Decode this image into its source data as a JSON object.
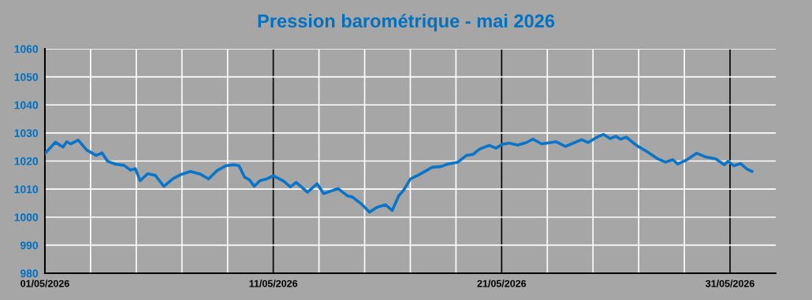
{
  "chart_data": {
    "type": "line",
    "title": "Pression barométrique - mai 2026",
    "x": [
      "2026-05-01T00:00",
      "2026-05-01T11:00",
      "2026-05-01T19:00",
      "2026-05-01T23:00",
      "2026-05-02T03:00",
      "2026-05-02T11:00",
      "2026-05-02T20:00",
      "2026-05-03T06:00",
      "2026-05-03T12:00",
      "2026-05-03T18:00",
      "2026-05-04T02:00",
      "2026-05-04T11:00",
      "2026-05-04T18:00",
      "2026-05-04T23:00",
      "2026-05-05T04:00",
      "2026-05-05T12:00",
      "2026-05-05T20:00",
      "2026-05-06T05:00",
      "2026-05-06T15:00",
      "2026-05-06T23:00",
      "2026-05-07T09:00",
      "2026-05-07T19:00",
      "2026-05-08T04:00",
      "2026-05-08T13:00",
      "2026-05-08T22:00",
      "2026-05-09T07:00",
      "2026-05-09T12:00",
      "2026-05-09T18:00",
      "2026-05-09T23:00",
      "2026-05-10T04:00",
      "2026-05-10T10:00",
      "2026-05-10T17:00",
      "2026-05-11T00:00",
      "2026-05-11T11:00",
      "2026-05-11T18:00",
      "2026-05-12T00:00",
      "2026-05-12T12:00",
      "2026-05-12T22:00",
      "2026-05-13T05:00",
      "2026-05-13T20:00",
      "2026-05-14T06:00",
      "2026-05-14T11:00",
      "2026-05-14T21:00",
      "2026-05-15T05:00",
      "2026-05-15T13:00",
      "2026-05-15T22:00",
      "2026-05-16T05:00",
      "2026-05-16T12:00",
      "2026-05-16T17:00",
      "2026-05-17T00:00",
      "2026-05-17T08:00",
      "2026-05-17T17:00",
      "2026-05-17T23:00",
      "2026-05-18T08:00",
      "2026-05-18T15:00",
      "2026-05-19T02:00",
      "2026-05-19T11:00",
      "2026-05-19T18:00",
      "2026-05-20T01:00",
      "2026-05-20T11:00",
      "2026-05-20T18:00",
      "2026-05-21T01:00",
      "2026-05-21T08:00",
      "2026-05-21T17:00",
      "2026-05-22T02:00",
      "2026-05-22T09:00",
      "2026-05-22T18:00",
      "2026-05-23T09:00",
      "2026-05-23T19:00",
      "2026-05-24T12:00",
      "2026-05-24T19:00",
      "2026-05-25T03:00",
      "2026-05-25T11:00",
      "2026-05-25T18:00",
      "2026-05-26T00:00",
      "2026-05-26T05:00",
      "2026-05-26T11:00",
      "2026-05-26T22:00",
      "2026-05-27T09:00",
      "2026-05-27T20:00",
      "2026-05-28T04:00",
      "2026-05-28T12:00",
      "2026-05-28T17:00",
      "2026-05-29T02:00",
      "2026-05-29T13:00",
      "2026-05-29T22:00",
      "2026-05-30T09:00",
      "2026-05-30T18:00",
      "2026-05-30T22:00",
      "2026-05-31T04:00",
      "2026-05-31T11:00",
      "2026-05-31T18:00",
      "2026-05-31T23:00"
    ],
    "series": [
      {
        "color": "#0a74c8",
        "values": [
          1022.7,
          1026.7,
          1025.0,
          1026.9,
          1026.1,
          1027.5,
          1023.9,
          1022.0,
          1022.9,
          1019.9,
          1018.9,
          1018.5,
          1016.8,
          1017.3,
          1013.0,
          1015.5,
          1014.9,
          1011.0,
          1013.8,
          1015.2,
          1016.3,
          1015.4,
          1013.6,
          1016.6,
          1018.3,
          1018.7,
          1018.3,
          1014.2,
          1013.3,
          1011.0,
          1013.0,
          1013.6,
          1014.8,
          1012.8,
          1010.8,
          1012.4,
          1008.9,
          1011.9,
          1008.4,
          1010.2,
          1007.6,
          1007.2,
          1004.6,
          1001.8,
          1003.5,
          1004.4,
          1002.4,
          1007.7,
          1009.6,
          1013.6,
          1014.9,
          1016.6,
          1017.8,
          1018.0,
          1018.9,
          1019.6,
          1022.0,
          1022.4,
          1024.3,
          1025.6,
          1024.6,
          1026.0,
          1026.4,
          1025.7,
          1026.6,
          1027.8,
          1026.1,
          1026.9,
          1025.2,
          1027.6,
          1026.6,
          1028.3,
          1029.5,
          1028.0,
          1028.8,
          1027.8,
          1028.5,
          1025.5,
          1023.3,
          1020.8,
          1019.6,
          1020.5,
          1018.9,
          1020.3,
          1022.8,
          1021.5,
          1020.8,
          1018.7,
          1019.9,
          1018.3,
          1019.1,
          1017.1,
          1016.3
        ]
      }
    ],
    "xlim": [
      "2026-05-01",
      "2026-06-02"
    ],
    "xticks": [
      {
        "value": "2026-05-01",
        "label": "01/05/2026"
      },
      {
        "value": "2026-05-03",
        "label": null
      },
      {
        "value": "2026-05-05",
        "label": null
      },
      {
        "value": "2026-05-07",
        "label": null
      },
      {
        "value": "2026-05-09",
        "label": null
      },
      {
        "value": "2026-05-11",
        "label": "11/05/2026"
      },
      {
        "value": "2026-05-13",
        "label": null
      },
      {
        "value": "2026-05-15",
        "label": null
      },
      {
        "value": "2026-05-17",
        "label": null
      },
      {
        "value": "2026-05-19",
        "label": null
      },
      {
        "value": "2026-05-21",
        "label": "21/05/2026"
      },
      {
        "value": "2026-05-23",
        "label": null
      },
      {
        "value": "2026-05-25",
        "label": null
      },
      {
        "value": "2026-05-27",
        "label": null
      },
      {
        "value": "2026-05-29",
        "label": null
      },
      {
        "value": "2026-05-31",
        "label": "31/05/2026"
      }
    ],
    "ylim": [
      980,
      1060
    ],
    "yticks": [
      980,
      990,
      1000,
      1010,
      1020,
      1030,
      1040,
      1050,
      1060
    ],
    "grid": true,
    "line_style": "solid",
    "marker": "none"
  }
}
